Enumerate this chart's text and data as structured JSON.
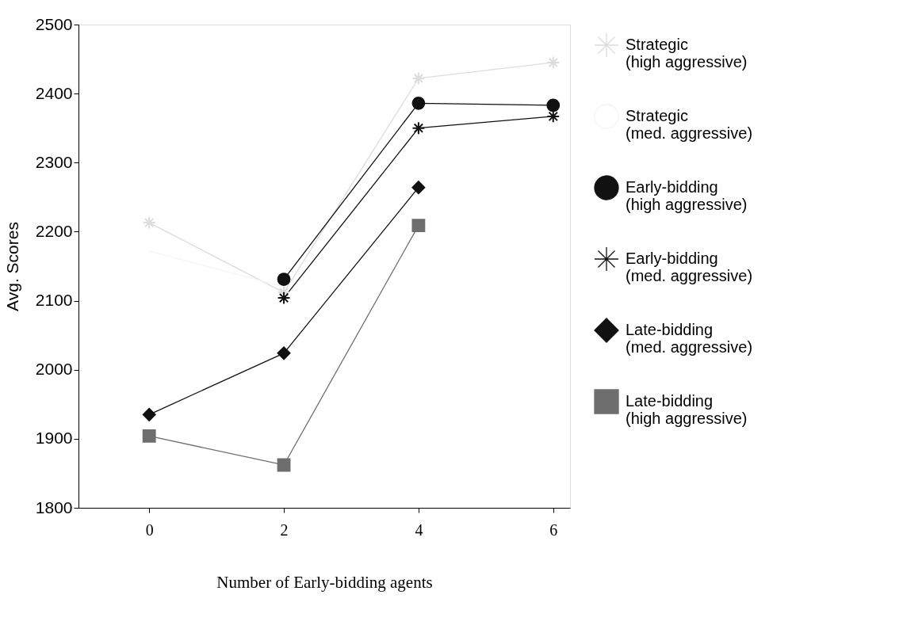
{
  "chart_data": {
    "type": "line",
    "xlabel": "Number of Early-bidding agents",
    "ylabel": "Avg. Scores",
    "x": [
      0,
      2,
      4,
      6
    ],
    "xlim": [
      -1.05,
      6.25
    ],
    "xticks": [
      0,
      2,
      4,
      6
    ],
    "ylim": [
      1800,
      2500
    ],
    "yticks": [
      1800,
      1900,
      2000,
      2100,
      2200,
      2300,
      2400,
      2500
    ],
    "grid": false,
    "legend": "right",
    "series": [
      {
        "name": "Strategic (high aggressive)",
        "color": "#dcdcdc",
        "marker": "cross",
        "values": [
          2213,
          2112,
          2422,
          2445
        ]
      },
      {
        "name": "Strategic (med. aggressive)",
        "color": "#f4f4f4",
        "marker": "none",
        "values": [
          2172,
          2120,
          null,
          null
        ]
      },
      {
        "name": "Early-bidding (high aggressive)",
        "color": "#111111",
        "marker": "circle",
        "values": [
          null,
          2131,
          2386,
          2383
        ]
      },
      {
        "name": "Early-bidding (med. aggressive)",
        "color": "#111111",
        "marker": "cross",
        "values": [
          null,
          2104,
          2350,
          2367
        ]
      },
      {
        "name": "Late-bidding (med. aggressive)",
        "color": "#111111",
        "marker": "diamond",
        "values": [
          1935,
          2024,
          2264,
          null
        ]
      },
      {
        "name": "Late-bidding (high aggressive)",
        "color": "#6e6e6e",
        "marker": "square",
        "values": [
          1904,
          1862,
          2209,
          null
        ]
      }
    ]
  }
}
